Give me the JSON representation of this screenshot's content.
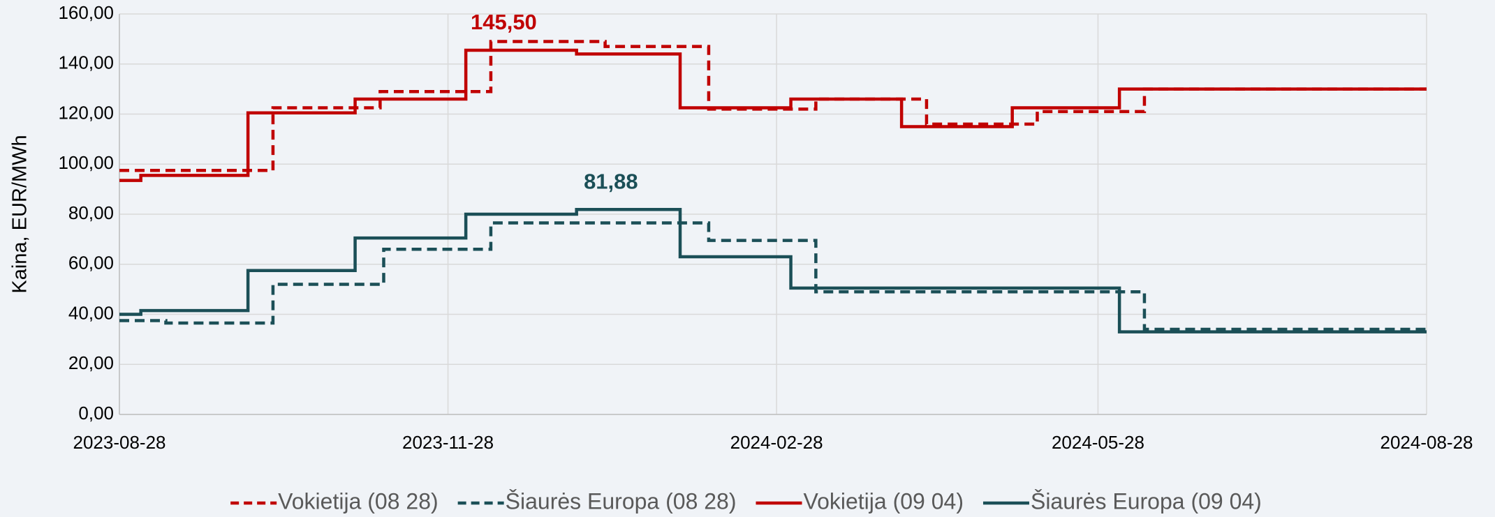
{
  "chart_data": {
    "type": "line",
    "step": true,
    "y_label": "Kaina, EUR/MWh",
    "xlim": [
      "2023-08-28",
      "2024-08-28"
    ],
    "xticks": [
      "2023-08-28",
      "2023-11-28",
      "2024-02-28",
      "2024-05-28",
      "2024-08-28"
    ],
    "ylim": [
      0,
      160
    ],
    "yticks": [
      {
        "value": 0,
        "label": "0,00"
      },
      {
        "value": 20,
        "label": "20,00"
      },
      {
        "value": 40,
        "label": "40,00"
      },
      {
        "value": 60,
        "label": "60,00"
      },
      {
        "value": 80,
        "label": "80,00"
      },
      {
        "value": 100,
        "label": "100,00"
      },
      {
        "value": 120,
        "label": "120,00"
      },
      {
        "value": 140,
        "label": "140,00"
      },
      {
        "value": 160,
        "label": "160,00"
      }
    ],
    "grid": true,
    "legend": "bottom",
    "series": [
      {
        "name": "Vokietija (08 28)",
        "color": "#c00000",
        "dash": true,
        "x": [
          "2023-08-28",
          "2023-10-10",
          "2023-11-09",
          "2023-12-10",
          "2024-01-11",
          "2024-02-09",
          "2024-03-10",
          "2024-04-10",
          "2024-05-11",
          "2024-06-10",
          "2024-08-28"
        ],
        "values": [
          97.5,
          122.5,
          129,
          149,
          147,
          122,
          126,
          116,
          121,
          130,
          130
        ]
      },
      {
        "name": "Šiaurės Europa (08 28)",
        "color": "#1b4f57",
        "dash": true,
        "x": [
          "2023-08-28",
          "2023-09-10",
          "2023-10-10",
          "2023-11-10",
          "2023-12-10",
          "2024-02-09",
          "2024-03-10",
          "2024-06-10",
          "2024-08-28"
        ],
        "values": [
          37.5,
          36.5,
          52,
          66,
          76.5,
          69.5,
          49,
          34,
          34
        ]
      },
      {
        "name": "Vokietija (09 04)",
        "color": "#c00000",
        "dash": false,
        "x": [
          "2023-08-28",
          "2023-09-03",
          "2023-10-03",
          "2023-11-02",
          "2023-12-03",
          "2024-01-03",
          "2024-02-01",
          "2024-03-03",
          "2024-04-03",
          "2024-05-04",
          "2024-06-03",
          "2024-08-28"
        ],
        "values": [
          93.5,
          95.5,
          120.5,
          126,
          145.5,
          144,
          122.5,
          126,
          115,
          122.5,
          130,
          130
        ]
      },
      {
        "name": "Šiaurės Europa (09 04)",
        "color": "#1b4f57",
        "dash": false,
        "x": [
          "2023-08-28",
          "2023-09-03",
          "2023-10-03",
          "2023-11-02",
          "2023-12-03",
          "2024-01-03",
          "2024-02-01",
          "2024-03-03",
          "2024-06-03",
          "2024-08-28"
        ],
        "values": [
          40,
          41.5,
          57.5,
          70.5,
          80,
          81.88,
          63,
          50.5,
          33,
          33
        ]
      }
    ],
    "annotations": [
      {
        "label": "145,50",
        "value": 145.5
      },
      {
        "label": "81,88",
        "value": 81.88
      }
    ]
  }
}
